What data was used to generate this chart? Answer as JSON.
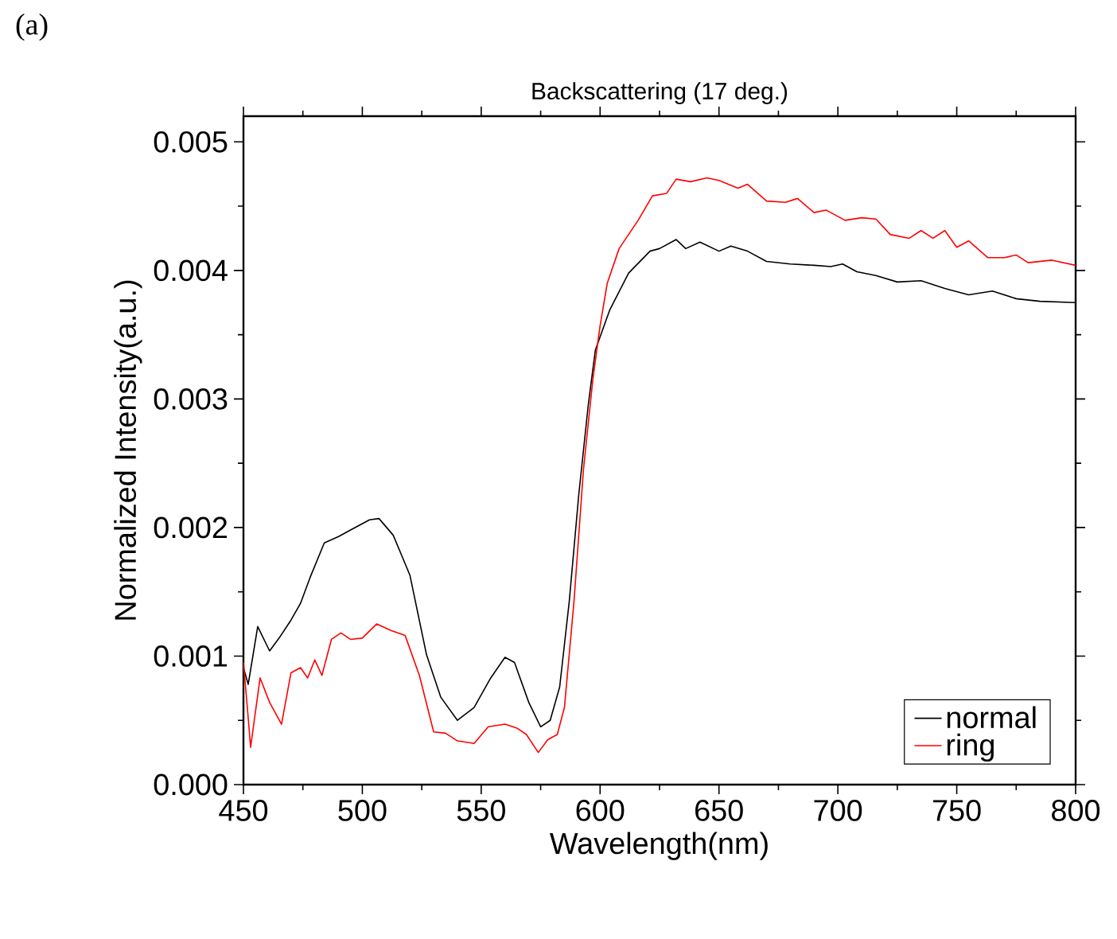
{
  "chart_data": {
    "type": "line",
    "title": "Backscattering (17 deg.)",
    "xlabel": "Wavelength(nm)",
    "ylabel": "Normalized Intensity(a.u.)",
    "annotations": [
      "(a)"
    ],
    "xlim": [
      450,
      800
    ],
    "xticks": [
      450,
      500,
      550,
      600,
      650,
      700,
      750,
      800
    ],
    "ylim": [
      0,
      0.0052
    ],
    "yticks": [
      {
        "value": 0,
        "label": "0.000"
      },
      {
        "value": 0.001,
        "label": "0.001"
      },
      {
        "value": 0.002,
        "label": "0.002"
      },
      {
        "value": 0.003,
        "label": "0.003"
      },
      {
        "value": 0.004,
        "label": "0.004"
      },
      {
        "value": 0.005,
        "label": "0.005"
      }
    ],
    "legend": "bottom right",
    "grid": false,
    "series": [
      {
        "name": "normal",
        "color": "#000000",
        "x": [
          450,
          452,
          456,
          461,
          465,
          470,
          474,
          478,
          484,
          490,
          496,
          503,
          507,
          513,
          520,
          527,
          533,
          540,
          547,
          554,
          560,
          564,
          570,
          575,
          579,
          583,
          587,
          591,
          595,
          598,
          604,
          612,
          621,
          625,
          632,
          636,
          642,
          650,
          655,
          662,
          670,
          680,
          690,
          697,
          702,
          708,
          716,
          725,
          735,
          745,
          755,
          765,
          775,
          785,
          800
        ],
        "values": [
          0.00091,
          0.00078,
          0.00123,
          0.00104,
          0.00114,
          0.00128,
          0.00141,
          0.00161,
          0.00188,
          0.00193,
          0.00199,
          0.00206,
          0.00207,
          0.00194,
          0.00163,
          0.00101,
          0.00068,
          0.0005,
          0.0006,
          0.00083,
          0.00099,
          0.00095,
          0.00064,
          0.00045,
          0.0005,
          0.00076,
          0.00142,
          0.00225,
          0.00295,
          0.00338,
          0.00369,
          0.00398,
          0.00415,
          0.00417,
          0.00424,
          0.00417,
          0.00422,
          0.00415,
          0.00419,
          0.00415,
          0.00407,
          0.00405,
          0.00404,
          0.00403,
          0.00405,
          0.00399,
          0.00396,
          0.00391,
          0.00392,
          0.00386,
          0.00381,
          0.00384,
          0.00378,
          0.00376,
          0.00375
        ]
      },
      {
        "name": "ring",
        "color": "#ff0000",
        "x": [
          450,
          452,
          453,
          457,
          461,
          466,
          470,
          474,
          477,
          480,
          483,
          487,
          491,
          495,
          500,
          506,
          512,
          518,
          524,
          530,
          535,
          540,
          547,
          553,
          560,
          565,
          569,
          574,
          578,
          582,
          585,
          589,
          593,
          597,
          600,
          603,
          608,
          616,
          622,
          628,
          632,
          638,
          645,
          650,
          658,
          662,
          670,
          678,
          683,
          690,
          695,
          703,
          710,
          716,
          722,
          730,
          735,
          740,
          745,
          750,
          755,
          763,
          770,
          775,
          780,
          790,
          800
        ],
        "values": [
          0.00095,
          0.00052,
          0.00029,
          0.00083,
          0.00064,
          0.00047,
          0.00087,
          0.00091,
          0.00083,
          0.00097,
          0.00085,
          0.00113,
          0.00118,
          0.00113,
          0.00114,
          0.00125,
          0.0012,
          0.00116,
          0.00085,
          0.00041,
          0.0004,
          0.00034,
          0.00032,
          0.00045,
          0.00047,
          0.00044,
          0.00039,
          0.00025,
          0.00035,
          0.00039,
          0.0006,
          0.00142,
          0.00245,
          0.00316,
          0.00357,
          0.0039,
          0.00417,
          0.00439,
          0.00458,
          0.0046,
          0.00471,
          0.00469,
          0.00472,
          0.0047,
          0.00464,
          0.00467,
          0.00454,
          0.00453,
          0.00456,
          0.00445,
          0.00447,
          0.00439,
          0.00441,
          0.0044,
          0.00428,
          0.00425,
          0.00431,
          0.00425,
          0.00431,
          0.00418,
          0.00423,
          0.0041,
          0.0041,
          0.00412,
          0.00406,
          0.00408,
          0.00404
        ]
      }
    ]
  }
}
